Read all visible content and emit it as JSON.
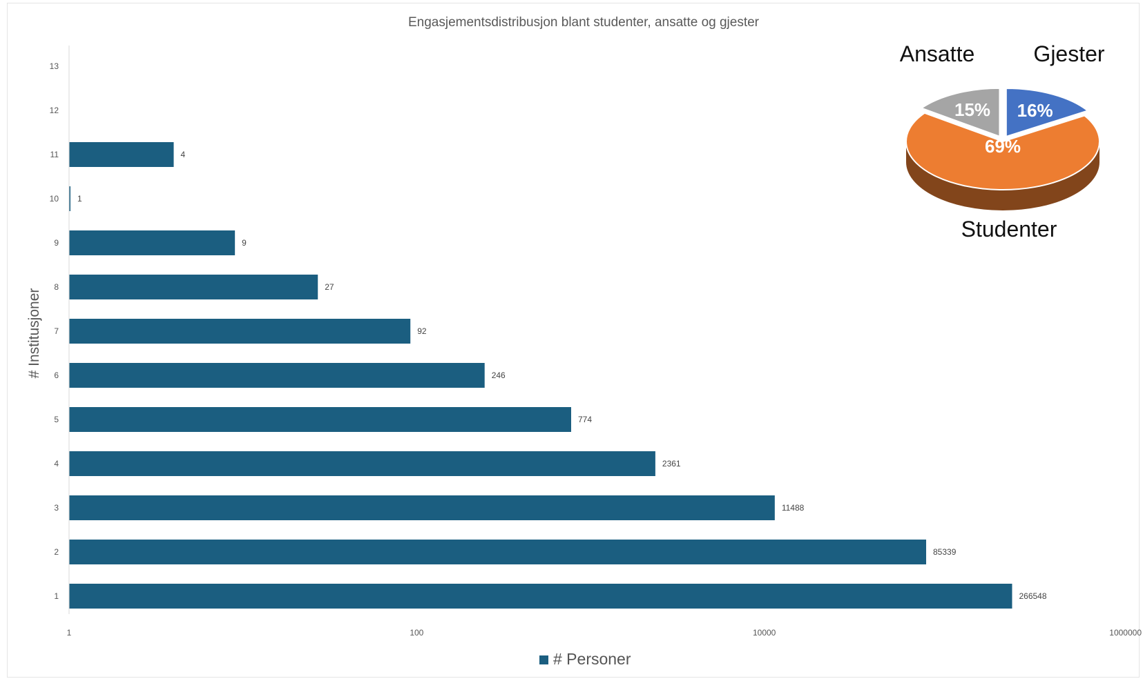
{
  "colors": {
    "bar": "#1b5e80",
    "axis": "#d9d9d9",
    "pie_blue": "#4472c4",
    "pie_gray": "#a5a5a5",
    "pie_orange": "#ed7d31"
  },
  "chart_data": [
    {
      "type": "bar",
      "orientation": "horizontal",
      "title": "Engasjementsdistribusjon blant studenter, ansatte og gjester",
      "xlabel": "",
      "ylabel": "# Institusjoner",
      "x_scale": "log",
      "xlim": [
        1,
        1000000
      ],
      "x_ticks": [
        "1",
        "100",
        "10000",
        "1000000"
      ],
      "categories": [
        "1",
        "2",
        "3",
        "4",
        "5",
        "6",
        "7",
        "8",
        "9",
        "10",
        "11",
        "12",
        "13"
      ],
      "series": [
        {
          "name": "# Personer",
          "values": [
            266548,
            85339,
            11488,
            2361,
            774,
            246,
            92,
            27,
            9,
            1,
            4,
            null,
            null
          ],
          "labels": [
            "266548",
            "85339",
            "11488",
            "2361",
            "774",
            "246",
            "92",
            "27",
            "9",
            "1",
            "4",
            "",
            ""
          ]
        }
      ],
      "legend": "bottom"
    },
    {
      "type": "pie",
      "style": "3d",
      "categories": [
        "Gjester",
        "Studenter",
        "Ansatte"
      ],
      "values": [
        16,
        69,
        15
      ],
      "value_labels": [
        "16%",
        "69%",
        "15%"
      ],
      "colors": [
        "#4472c4",
        "#ed7d31",
        "#a5a5a5"
      ],
      "legend": "none"
    }
  ]
}
